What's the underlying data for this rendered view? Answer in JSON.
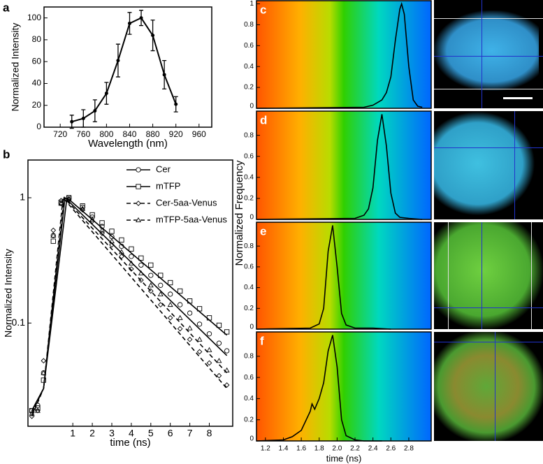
{
  "chart_data": [
    {
      "type": "line",
      "panel": "a",
      "xlabel": "Wavelength (nm)",
      "ylabel": "Normalized Intensity",
      "xlim": [
        692,
        982
      ],
      "ylim": [
        0,
        110
      ],
      "xticks": [
        720,
        760,
        800,
        840,
        880,
        920,
        960
      ],
      "yticks": [
        0,
        20,
        40,
        60,
        80,
        100
      ],
      "series": [
        {
          "color": "#000000",
          "x": [
            740,
            760,
            780,
            800,
            820,
            840,
            860,
            880,
            900,
            920
          ],
          "values": [
            5,
            8,
            15,
            31,
            61,
            95,
            100,
            84,
            48,
            21
          ],
          "errors": [
            6,
            8,
            10,
            10,
            15,
            10,
            7,
            14,
            13,
            7
          ]
        }
      ]
    },
    {
      "type": "scatter",
      "panel": "b",
      "xlabel": "time (ns)",
      "ylabel": "Normalized Intensity",
      "log_y": true,
      "xlim": [
        -1.3,
        9.2
      ],
      "ylim": [
        0.015,
        2
      ],
      "xticks": [
        1,
        2,
        3,
        4,
        5,
        6,
        7,
        8
      ],
      "yticks": [
        0.1,
        1
      ],
      "legend": "upper right",
      "series": [
        {
          "name": "Cer",
          "marker": "circle",
          "linestyle": "solid",
          "color": "#000000",
          "x": [
            -1.1,
            -0.8,
            -0.5,
            0,
            0.4,
            0.8,
            1.5,
            2,
            2.5,
            3,
            3.5,
            4,
            4.5,
            5,
            5.5,
            6,
            6.5,
            7,
            7.5,
            8,
            8.5,
            8.9
          ],
          "values": [
            0.02,
            0.022,
            0.04,
            0.5,
            0.9,
            1.0,
            0.84,
            0.7,
            0.59,
            0.49,
            0.41,
            0.34,
            0.29,
            0.24,
            0.2,
            0.17,
            0.14,
            0.12,
            0.098,
            0.082,
            0.069,
            0.06
          ],
          "fit_x": [
            -1.1,
            -0.5,
            0.6,
            8.9
          ],
          "fit_values": [
            0.02,
            0.03,
            1.0,
            0.055
          ]
        },
        {
          "name": "mTFP",
          "marker": "square",
          "linestyle": "solid",
          "color": "#000000",
          "x": [
            -1.1,
            -0.8,
            -0.5,
            0,
            0.4,
            0.8,
            1.5,
            2,
            2.5,
            3,
            3.5,
            4,
            4.5,
            5,
            5.5,
            6,
            6.5,
            7,
            7.5,
            8,
            8.5,
            8.9
          ],
          "values": [
            0.02,
            0.021,
            0.035,
            0.45,
            0.92,
            1.0,
            0.86,
            0.73,
            0.63,
            0.54,
            0.46,
            0.39,
            0.33,
            0.29,
            0.24,
            0.21,
            0.18,
            0.15,
            0.13,
            0.11,
            0.096,
            0.085
          ],
          "fit_x": [
            -1.1,
            -0.5,
            0.7,
            8.9
          ],
          "fit_values": [
            0.02,
            0.03,
            1.0,
            0.08
          ]
        },
        {
          "name": "Cer-5aa-Venus",
          "marker": "diamond",
          "linestyle": "dashed",
          "color": "#000000",
          "x": [
            -1.1,
            -0.8,
            -0.5,
            0,
            0.4,
            0.8,
            1.5,
            2,
            2.5,
            3,
            3.5,
            4,
            4.5,
            5,
            5.5,
            6,
            6.5,
            7,
            7.5,
            8,
            8.5,
            8.9
          ],
          "values": [
            0.018,
            0.02,
            0.05,
            0.55,
            0.95,
            0.98,
            0.8,
            0.65,
            0.52,
            0.42,
            0.34,
            0.27,
            0.22,
            0.18,
            0.14,
            0.11,
            0.09,
            0.074,
            0.059,
            0.048,
            0.038,
            0.032
          ],
          "fit_x": [
            -1.1,
            -0.5,
            0.5,
            8.9
          ],
          "fit_values": [
            0.018,
            0.03,
            1.0,
            0.03
          ]
        },
        {
          "name": "mTFP-5aa-Venus",
          "marker": "triangle",
          "linestyle": "dashed",
          "color": "#000000",
          "x": [
            -1.1,
            -0.8,
            -0.5,
            0,
            0.4,
            0.8,
            1.5,
            2,
            2.5,
            3,
            3.5,
            4,
            4.5,
            5,
            5.5,
            6,
            6.5,
            7,
            7.5,
            8,
            8.5,
            8.9
          ],
          "values": [
            0.019,
            0.02,
            0.04,
            0.5,
            0.9,
            0.97,
            0.82,
            0.67,
            0.55,
            0.45,
            0.37,
            0.3,
            0.25,
            0.2,
            0.17,
            0.14,
            0.11,
            0.091,
            0.074,
            0.061,
            0.05,
            0.042
          ],
          "fit_x": [
            -1.1,
            -0.5,
            0.55,
            8.9
          ],
          "fit_values": [
            0.019,
            0.03,
            1.0,
            0.04
          ]
        }
      ]
    },
    {
      "type": "line",
      "panel": "c",
      "ylabel": "Normalized Frequency",
      "xlim": [
        1.1,
        3.05
      ],
      "ylim": [
        0,
        1.03
      ],
      "yticks": [
        0,
        0.2,
        0.4,
        0.6,
        0.8,
        1
      ],
      "series": [
        {
          "color": "#000000",
          "x": [
            1.1,
            2.3,
            2.4,
            2.5,
            2.55,
            2.6,
            2.65,
            2.7,
            2.72,
            2.75,
            2.8,
            2.85,
            2.9,
            2.95
          ],
          "values": [
            0,
            0.01,
            0.03,
            0.08,
            0.15,
            0.3,
            0.65,
            0.95,
            1.0,
            0.9,
            0.4,
            0.08,
            0.02,
            0.01
          ]
        }
      ]
    },
    {
      "type": "line",
      "panel": "d",
      "xlim": [
        1.1,
        3.05
      ],
      "ylim": [
        0,
        1.03
      ],
      "yticks": [
        0,
        0.2,
        0.4,
        0.6,
        0.8
      ],
      "series": [
        {
          "color": "#000000",
          "x": [
            1.1,
            2.2,
            2.3,
            2.35,
            2.4,
            2.45,
            2.5,
            2.55,
            2.6,
            2.65,
            2.7,
            2.8,
            2.95
          ],
          "values": [
            0,
            0.01,
            0.04,
            0.1,
            0.3,
            0.75,
            1.0,
            0.7,
            0.25,
            0.06,
            0.02,
            0.01,
            0
          ]
        }
      ]
    },
    {
      "type": "line",
      "panel": "e",
      "xlim": [
        1.1,
        3.05
      ],
      "ylim": [
        0,
        1.03
      ],
      "yticks": [
        0,
        0.2,
        0.4,
        0.6,
        0.8
      ],
      "series": [
        {
          "color": "#000000",
          "x": [
            1.1,
            1.7,
            1.8,
            1.85,
            1.9,
            1.95,
            2.0,
            2.05,
            2.1,
            2.2,
            2.4,
            2.6
          ],
          "values": [
            0,
            0.01,
            0.05,
            0.2,
            0.75,
            1.0,
            0.6,
            0.15,
            0.04,
            0.01,
            0.01,
            0
          ]
        }
      ]
    },
    {
      "type": "line",
      "panel": "f",
      "xlabel": "time (ns)",
      "xlim": [
        1.1,
        3.05
      ],
      "ylim": [
        0,
        1.03
      ],
      "xticks": [
        1.2,
        1.4,
        1.6,
        1.8,
        {
          "value": 2,
          "label": "2.0"
        },
        2.2,
        2.4,
        2.6,
        2.8
      ],
      "yticks": [
        0,
        0.2,
        0.4,
        0.6,
        0.8
      ],
      "series": [
        {
          "color": "#000000",
          "x": [
            1.1,
            1.4,
            1.5,
            1.6,
            1.7,
            1.72,
            1.75,
            1.8,
            1.85,
            1.9,
            1.95,
            2.0,
            2.05,
            2.1,
            2.2,
            2.3,
            2.5
          ],
          "values": [
            0,
            0.01,
            0.04,
            0.1,
            0.28,
            0.35,
            0.3,
            0.4,
            0.55,
            0.85,
            1.0,
            0.7,
            0.2,
            0.05,
            0.01,
            0,
            0
          ]
        }
      ]
    }
  ]
}
